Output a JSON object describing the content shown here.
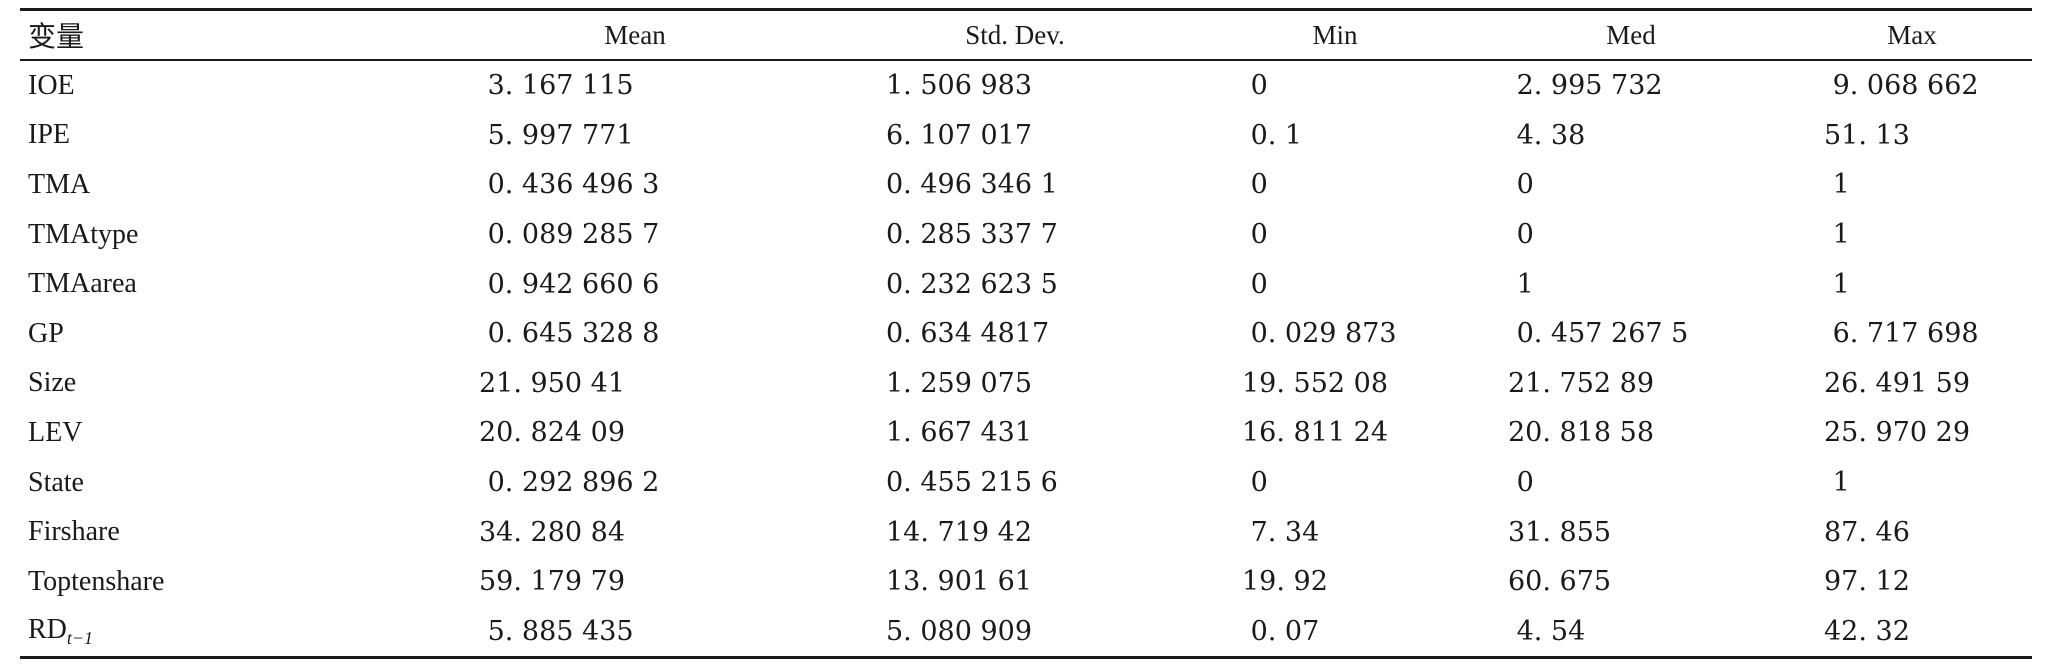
{
  "table": {
    "headers": [
      "变量",
      "Mean",
      "Std.  Dev.",
      "Min",
      "Med",
      "Max"
    ],
    "rows": [
      {
        "label": "IOE",
        "sub": "",
        "values": [
          " 3. 167 115",
          "1. 506 983",
          " 0",
          " 2. 995 732",
          " 9. 068 662"
        ]
      },
      {
        "label": "IPE",
        "sub": "",
        "values": [
          " 5. 997 771",
          "6. 107 017",
          " 0. 1",
          " 4. 38",
          "51. 13"
        ]
      },
      {
        "label": "TMA",
        "sub": "",
        "values": [
          " 0. 436 496 3",
          "0. 496 346 1",
          " 0",
          " 0",
          " 1"
        ]
      },
      {
        "label": "TMAtype",
        "sub": "",
        "values": [
          " 0. 089 285 7",
          "0. 285 337 7",
          " 0",
          " 0",
          " 1"
        ]
      },
      {
        "label": "TMAarea",
        "sub": "",
        "values": [
          " 0. 942 660 6",
          "0. 232 623 5",
          " 0",
          " 1",
          " 1"
        ]
      },
      {
        "label": "GP",
        "sub": "",
        "values": [
          " 0. 645 328 8",
          "0. 634 4817",
          " 0. 029 873",
          " 0. 457 267 5",
          " 6. 717 698"
        ]
      },
      {
        "label": "Size",
        "sub": "",
        "values": [
          "21. 950 41",
          "1. 259 075",
          "19. 552 08",
          "21. 752 89",
          "26. 491 59"
        ]
      },
      {
        "label": "LEV",
        "sub": "",
        "values": [
          "20. 824 09",
          "1. 667 431",
          "16. 811 24",
          "20. 818 58",
          "25. 970 29"
        ]
      },
      {
        "label": "State",
        "sub": "",
        "values": [
          " 0. 292 896 2",
          "0. 455 215 6",
          " 0",
          " 0",
          " 1"
        ]
      },
      {
        "label": "Firshare",
        "sub": "",
        "values": [
          "34. 280 84",
          "14. 719 42",
          " 7. 34",
          "31. 855",
          "87. 46"
        ]
      },
      {
        "label": "Toptenshare",
        "sub": "",
        "values": [
          "59. 179 79",
          "13. 901 61",
          "19. 92",
          "60. 675",
          "97. 12"
        ]
      },
      {
        "label": "RD",
        "sub": "t−1",
        "values": [
          " 5. 885 435",
          "5. 080 909",
          " 0. 07",
          " 4. 54",
          "42. 32"
        ]
      }
    ]
  }
}
